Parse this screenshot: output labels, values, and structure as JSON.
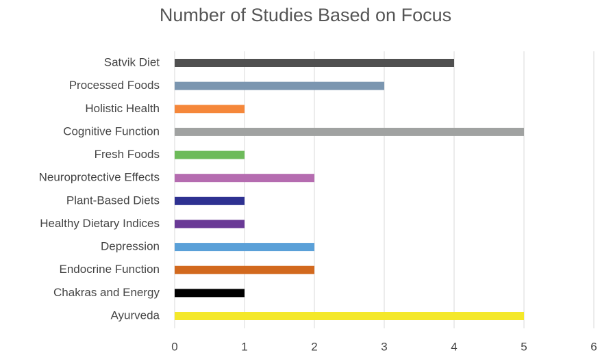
{
  "chart_data": {
    "type": "hbar",
    "title": "Number of Studies Based on Focus",
    "categories": [
      "Satvik Diet",
      "Processed Foods",
      "Holistic Health",
      "Cognitive Function",
      "Fresh Foods",
      "Neuroprotective Effects",
      "Plant-Based Diets",
      "Healthy Dietary Indices",
      "Depression",
      "Endocrine Function",
      "Chakras and Energy",
      "Ayurveda"
    ],
    "values": [
      4,
      3,
      1,
      5,
      1,
      2,
      1,
      1,
      2,
      2,
      1,
      5
    ],
    "colors": [
      "#505050",
      "#7b96b0",
      "#f5873a",
      "#a0a2a1",
      "#6dbb5a",
      "#b56cb0",
      "#2e3191",
      "#6a3a96",
      "#5aa0d8",
      "#d2691e",
      "#000000",
      "#f4e82a"
    ],
    "xlim": [
      0,
      6
    ],
    "xticks": [
      0,
      1,
      2,
      3,
      4,
      5,
      6
    ],
    "grid": true
  }
}
